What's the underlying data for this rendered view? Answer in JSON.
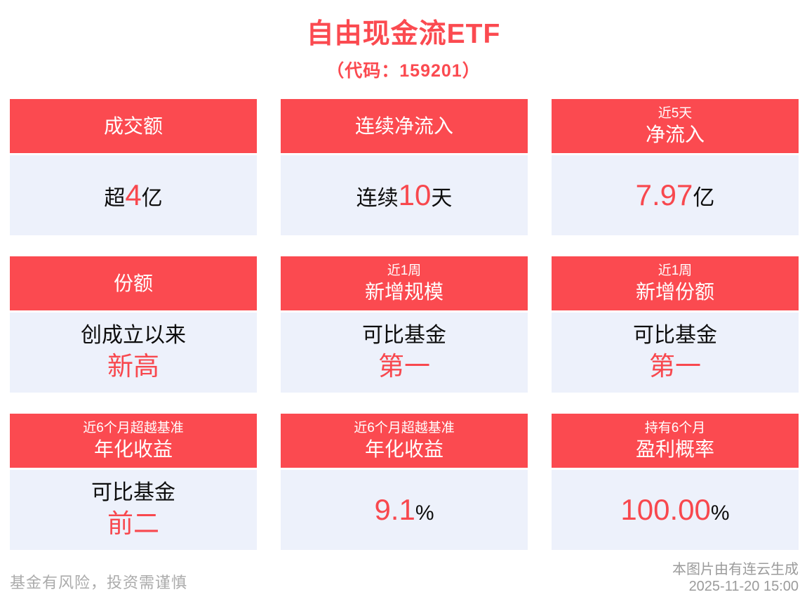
{
  "page": {
    "title": "自由现金流ETF",
    "subtitle": "（代码：159201）",
    "footer_left": "基金有风险，投资需谨慎",
    "footer_right_line1": "本图片由有连云生成",
    "footer_right_line2": "2025-11-20 15:00"
  },
  "colors": {
    "accent_red": "#FB4A50",
    "accent_text": "#F8484E",
    "body_bg": "#EDF1FB",
    "text_black": "#0D0D0D",
    "footer_gray": "#ABABAB",
    "footer_gray_dark": "#9B9B9B"
  },
  "cards": [
    {
      "header_main": "成交额",
      "prefix": "超",
      "accent": "4",
      "suffix": "亿"
    },
    {
      "header_main": "连续净流入",
      "prefix": "连续",
      "accent": "10",
      "suffix": "天"
    },
    {
      "header_small": "近5天",
      "header_main": "净流入",
      "accent": "7.97",
      "suffix": "亿"
    },
    {
      "header_main": "份额",
      "line1": "创成立以来",
      "line2": "新高"
    },
    {
      "header_small": "近1周",
      "header_main": "新增规模",
      "line1": "可比基金",
      "line2": "第一"
    },
    {
      "header_small": "近1周",
      "header_main": "新增份额",
      "line1": "可比基金",
      "line2": "第一"
    },
    {
      "header_small": "近6个月超越基准",
      "header_main": "年化收益",
      "line1": "可比基金",
      "line2": "前二"
    },
    {
      "header_small": "近6个月超越基准",
      "header_main": "年化收益",
      "accent": "9.1",
      "suffix": "%"
    },
    {
      "header_small": "持有6个月",
      "header_main": "盈利概率",
      "accent": "100.00",
      "suffix": "%"
    }
  ],
  "chart_data": {
    "type": "table",
    "title": "自由现金流ETF（代码：159201）",
    "metrics": [
      {
        "label": "成交额",
        "value": "超4亿"
      },
      {
        "label": "连续净流入",
        "value": "连续10天"
      },
      {
        "label": "近5天净流入",
        "value": "7.97亿"
      },
      {
        "label": "份额",
        "value": "创成立以来新高"
      },
      {
        "label": "近1周新增规模",
        "value": "可比基金第一"
      },
      {
        "label": "近1周新增份额",
        "value": "可比基金第一"
      },
      {
        "label": "近6个月超越基准年化收益",
        "value": "可比基金前二"
      },
      {
        "label": "近6个月超越基准年化收益",
        "value": "9.1%"
      },
      {
        "label": "持有6个月盈利概率",
        "value": "100.00%"
      }
    ],
    "generated_by": "本图片由有连云生成",
    "generated_at": "2025-11-20 15:00"
  }
}
